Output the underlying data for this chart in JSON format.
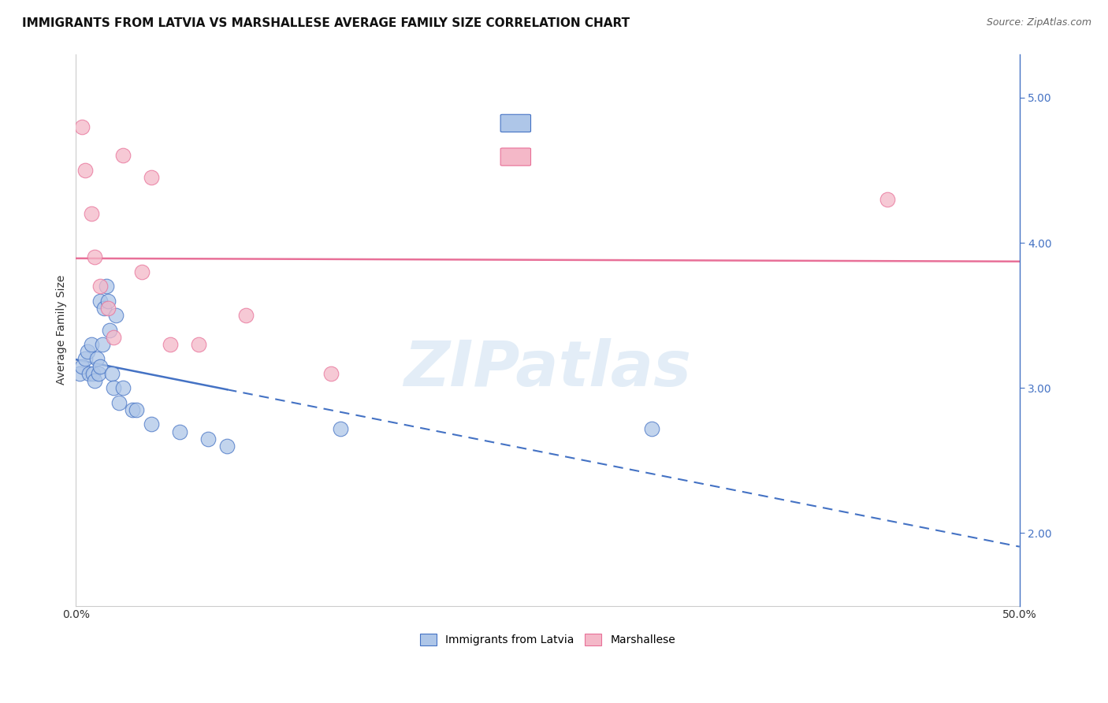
{
  "title": "IMMIGRANTS FROM LATVIA VS MARSHALLESE AVERAGE FAMILY SIZE CORRELATION CHART",
  "source": "Source: ZipAtlas.com",
  "ylabel": "Average Family Size",
  "xmin": 0.0,
  "xmax": 50.0,
  "ymin": 1.5,
  "ymax": 5.3,
  "yticks": [
    2.0,
    3.0,
    4.0,
    5.0
  ],
  "legend_labels": [
    "Immigrants from Latvia",
    "Marshallese"
  ],
  "blue_color": "#aec6e8",
  "pink_color": "#f4b8c8",
  "blue_line_color": "#4472c4",
  "pink_line_color": "#e87098",
  "blue_scatter_x": [
    0.2,
    0.3,
    0.5,
    0.6,
    0.7,
    0.8,
    0.9,
    1.0,
    1.1,
    1.2,
    1.3,
    1.3,
    1.4,
    1.5,
    1.6,
    1.7,
    1.8,
    1.9,
    2.0,
    2.1,
    2.3,
    2.5,
    3.0,
    3.2,
    4.0,
    5.5,
    7.0,
    8.0,
    14.0,
    30.5
  ],
  "blue_scatter_y": [
    3.1,
    3.15,
    3.2,
    3.25,
    3.1,
    3.3,
    3.1,
    3.05,
    3.2,
    3.1,
    3.15,
    3.6,
    3.3,
    3.55,
    3.7,
    3.6,
    3.4,
    3.1,
    3.0,
    3.5,
    2.9,
    3.0,
    2.85,
    2.85,
    2.75,
    2.7,
    2.65,
    2.6,
    2.72,
    2.72
  ],
  "pink_scatter_x": [
    0.3,
    0.5,
    0.8,
    1.0,
    1.3,
    1.7,
    2.0,
    2.5,
    3.5,
    4.0,
    5.0,
    6.5,
    9.0,
    13.5,
    43.0
  ],
  "pink_scatter_y": [
    4.8,
    4.5,
    4.2,
    3.9,
    3.7,
    3.55,
    3.35,
    4.6,
    3.8,
    4.45,
    3.3,
    3.3,
    3.5,
    3.1,
    4.3
  ],
  "blue_solid_end": 8.0,
  "watermark_text": "ZIPatlas",
  "title_fontsize": 11,
  "axis_label_fontsize": 10,
  "tick_fontsize": 10,
  "source_fontsize": 9
}
